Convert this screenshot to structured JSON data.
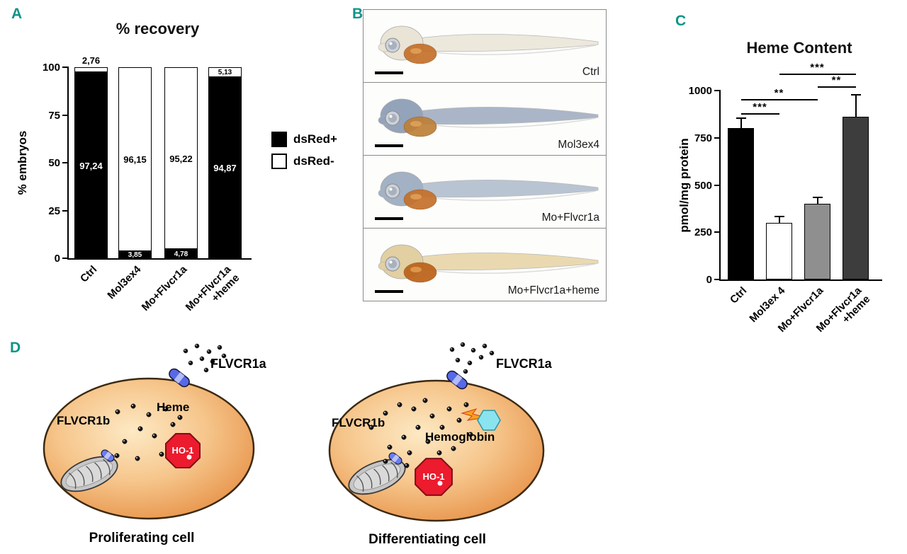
{
  "panel_letters": {
    "A": "A",
    "B": "B",
    "C": "C",
    "D": "D"
  },
  "panelA": {
    "title": "% recovery",
    "ylabel": "% embryos",
    "yticks": [
      {
        "label": "0",
        "value": 0
      },
      {
        "label": "25",
        "value": 25
      },
      {
        "label": "50",
        "value": 50
      },
      {
        "label": "75",
        "value": 75
      },
      {
        "label": "100",
        "value": 100
      }
    ],
    "legend": [
      {
        "label": "dsRed+",
        "swatch": "#000000"
      },
      {
        "label": "dsRed-",
        "swatch": "#ffffff"
      }
    ],
    "categories": [
      "Ctrl",
      "Mol3ex4",
      "Mo+Flvcr1a",
      "Mo+Flvcr1a\n+heme"
    ],
    "bars": [
      {
        "category": "Ctrl",
        "segments": [
          {
            "name": "dsRed+",
            "value": 97.24,
            "color": "#000000",
            "label": "97,24",
            "label_color": "#ffffff",
            "label_pos": "middle"
          },
          {
            "name": "dsRed-",
            "value": 2.76,
            "color": "#ffffff",
            "label": "2,76",
            "label_color": "#000000",
            "label_pos": "above"
          }
        ]
      },
      {
        "category": "Mol3ex4",
        "segments": [
          {
            "name": "dsRed+",
            "value": 3.85,
            "color": "#000000",
            "label": "3,85",
            "label_color": "#ffffff",
            "label_pos": "middle"
          },
          {
            "name": "dsRed-",
            "value": 96.15,
            "color": "#ffffff",
            "label": "96,15",
            "label_color": "#000000",
            "label_pos": "middle"
          }
        ]
      },
      {
        "category": "Mo+Flvcr1a",
        "segments": [
          {
            "name": "dsRed+",
            "value": 4.78,
            "color": "#000000",
            "label": "4,78",
            "label_color": "#ffffff",
            "label_pos": "middle"
          },
          {
            "name": "dsRed-",
            "value": 95.22,
            "color": "#ffffff",
            "label": "95,22",
            "label_color": "#000000",
            "label_pos": "middle"
          }
        ]
      },
      {
        "category": "Mo+Flvcr1a+heme",
        "segments": [
          {
            "name": "dsRed+",
            "value": 94.87,
            "color": "#000000",
            "label": "94,87",
            "label_color": "#ffffff",
            "label_pos": "middle"
          },
          {
            "name": "dsRed-",
            "value": 5.13,
            "color": "#ffffff",
            "label": "5,13",
            "label_color": "#000000",
            "label_pos": "middle"
          }
        ]
      }
    ]
  },
  "panelB": {
    "rows": [
      {
        "label": "Ctrl",
        "head": "#e9e4d6",
        "body": "#ece8dc",
        "yolk": "#c4702a"
      },
      {
        "label": "Mol3ex4",
        "head": "#93a3ba",
        "body": "#aab6c8",
        "yolk": "#bd8038"
      },
      {
        "label": "Mo+Flvcr1a",
        "head": "#a2b1c4",
        "body": "#b9c4d2",
        "yolk": "#c4702a"
      },
      {
        "label": "Mo+Flvcr1a+heme",
        "head": "#e2cfa2",
        "body": "#ead9b0",
        "yolk": "#bb6119"
      }
    ]
  },
  "panelC": {
    "title": "Heme Content",
    "ylabel": "pmol/mg protein",
    "yticks": [
      {
        "label": "0",
        "value": 0
      },
      {
        "label": "250",
        "value": 250
      },
      {
        "label": "500",
        "value": 500
      },
      {
        "label": "750",
        "value": 750
      },
      {
        "label": "1000",
        "value": 1000
      }
    ],
    "categories": [
      "Ctrl",
      "Mol3ex 4",
      "Mo+Flvcr1a",
      "Mo+Flvcr1a\n+heme"
    ],
    "bars": [
      {
        "category": "Ctrl",
        "value": 800,
        "error": 50,
        "color": "#000000"
      },
      {
        "category": "Mol3ex 4",
        "value": 300,
        "error": 30,
        "color": "#ffffff"
      },
      {
        "category": "Mo+Flvcr1a",
        "value": 400,
        "error": 30,
        "color": "#8f8f8f"
      },
      {
        "category": "Mo+Flvcr1a+heme",
        "value": 860,
        "error": 115,
        "color": "#3d3d3d"
      }
    ],
    "significance": [
      {
        "from": 1,
        "to": 3,
        "label": "***"
      },
      {
        "from": 2,
        "to": 3,
        "label": "**"
      },
      {
        "from": 0,
        "to": 2,
        "label": "**"
      },
      {
        "from": 0,
        "to": 1,
        "label": "***"
      }
    ]
  },
  "panelD": {
    "cells": [
      {
        "caption": "Proliferating cell",
        "labels": {
          "flvcr1b": "FLVCR1b",
          "heme": "Heme",
          "flvcr1a": "FLVCR1a",
          "ho1": "HO-1"
        },
        "dots_inside": [
          [
            118,
            100
          ],
          [
            140,
            92
          ],
          [
            162,
            104
          ],
          [
            186,
            96
          ],
          [
            150,
            124
          ],
          [
            128,
            142
          ],
          [
            170,
            134
          ],
          [
            196,
            118
          ],
          [
            117,
            162
          ],
          [
            146,
            166
          ],
          [
            180,
            160
          ],
          [
            206,
            108
          ]
        ],
        "dots_outside": [
          [
            214,
            14
          ],
          [
            230,
            7
          ],
          [
            247,
            15
          ],
          [
            262,
            9
          ],
          [
            237,
            25
          ],
          [
            221,
            31
          ],
          [
            252,
            29
          ],
          [
            268,
            21
          ],
          [
            243,
            41
          ]
        ]
      },
      {
        "caption": "Differentiating cell",
        "labels": {
          "flvcr1b": "FLVCR1b",
          "hemoglobin": "Hemoglobin",
          "flvcr1a": "FLVCR1a",
          "ho1": "HO-1"
        },
        "dots_inside": [
          [
            76,
            122
          ],
          [
            96,
            102
          ],
          [
            116,
            90
          ],
          [
            136,
            96
          ],
          [
            152,
            84
          ],
          [
            162,
            106
          ],
          [
            142,
            122
          ],
          [
            122,
            136
          ],
          [
            102,
            150
          ],
          [
            130,
            158
          ],
          [
            156,
            142
          ],
          [
            176,
            122
          ],
          [
            186,
            96
          ],
          [
            200,
            112
          ],
          [
            216,
            132
          ],
          [
            172,
            158
          ],
          [
            126,
            176
          ],
          [
            192,
            152
          ],
          [
            96,
            170
          ],
          [
            210,
            90
          ]
        ],
        "dots_outside": [
          [
            190,
            12
          ],
          [
            205,
            5
          ],
          [
            220,
            13
          ],
          [
            236,
            7
          ],
          [
            198,
            27
          ],
          [
            215,
            31
          ],
          [
            231,
            23
          ],
          [
            246,
            17
          ],
          [
            209,
            43
          ]
        ]
      }
    ]
  },
  "chart_data": [
    {
      "type": "bar",
      "subtype": "stacked",
      "title": "% recovery",
      "xlabel": "",
      "ylabel": "% embryos",
      "ylim": [
        0,
        100
      ],
      "grid": false,
      "legend_position": "right",
      "categories": [
        "Ctrl",
        "Mol3ex4",
        "Mo+Flvcr1a",
        "Mo+Flvcr1a+heme"
      ],
      "series": [
        {
          "name": "dsRed+",
          "color": "#000000",
          "values": [
            97.24,
            3.85,
            4.78,
            94.87
          ]
        },
        {
          "name": "dsRed-",
          "color": "#ffffff",
          "values": [
            2.76,
            96.15,
            95.22,
            5.13
          ]
        }
      ],
      "data_labels": [
        [
          "97,24",
          "3,85",
          "4,78",
          "94,87"
        ],
        [
          "2,76",
          "96,15",
          "95,22",
          "5,13"
        ]
      ]
    },
    {
      "type": "bar",
      "title": "Heme Content",
      "xlabel": "",
      "ylabel": "pmol/mg protein",
      "ylim": [
        0,
        1000
      ],
      "grid": false,
      "categories": [
        "Ctrl",
        "Mol3ex 4",
        "Mo+Flvcr1a",
        "Mo+Flvcr1a+heme"
      ],
      "values": [
        800,
        300,
        400,
        860
      ],
      "errors": [
        50,
        30,
        30,
        115
      ],
      "bar_colors": [
        "#000000",
        "#ffffff",
        "#8f8f8f",
        "#3d3d3d"
      ],
      "significance": [
        {
          "between": [
            "Mol3ex 4",
            "Mo+Flvcr1a+heme"
          ],
          "label": "***"
        },
        {
          "between": [
            "Mo+Flvcr1a",
            "Mo+Flvcr1a+heme"
          ],
          "label": "**"
        },
        {
          "between": [
            "Ctrl",
            "Mo+Flvcr1a"
          ],
          "label": "**"
        },
        {
          "between": [
            "Ctrl",
            "Mol3ex 4"
          ],
          "label": "***"
        }
      ]
    }
  ]
}
